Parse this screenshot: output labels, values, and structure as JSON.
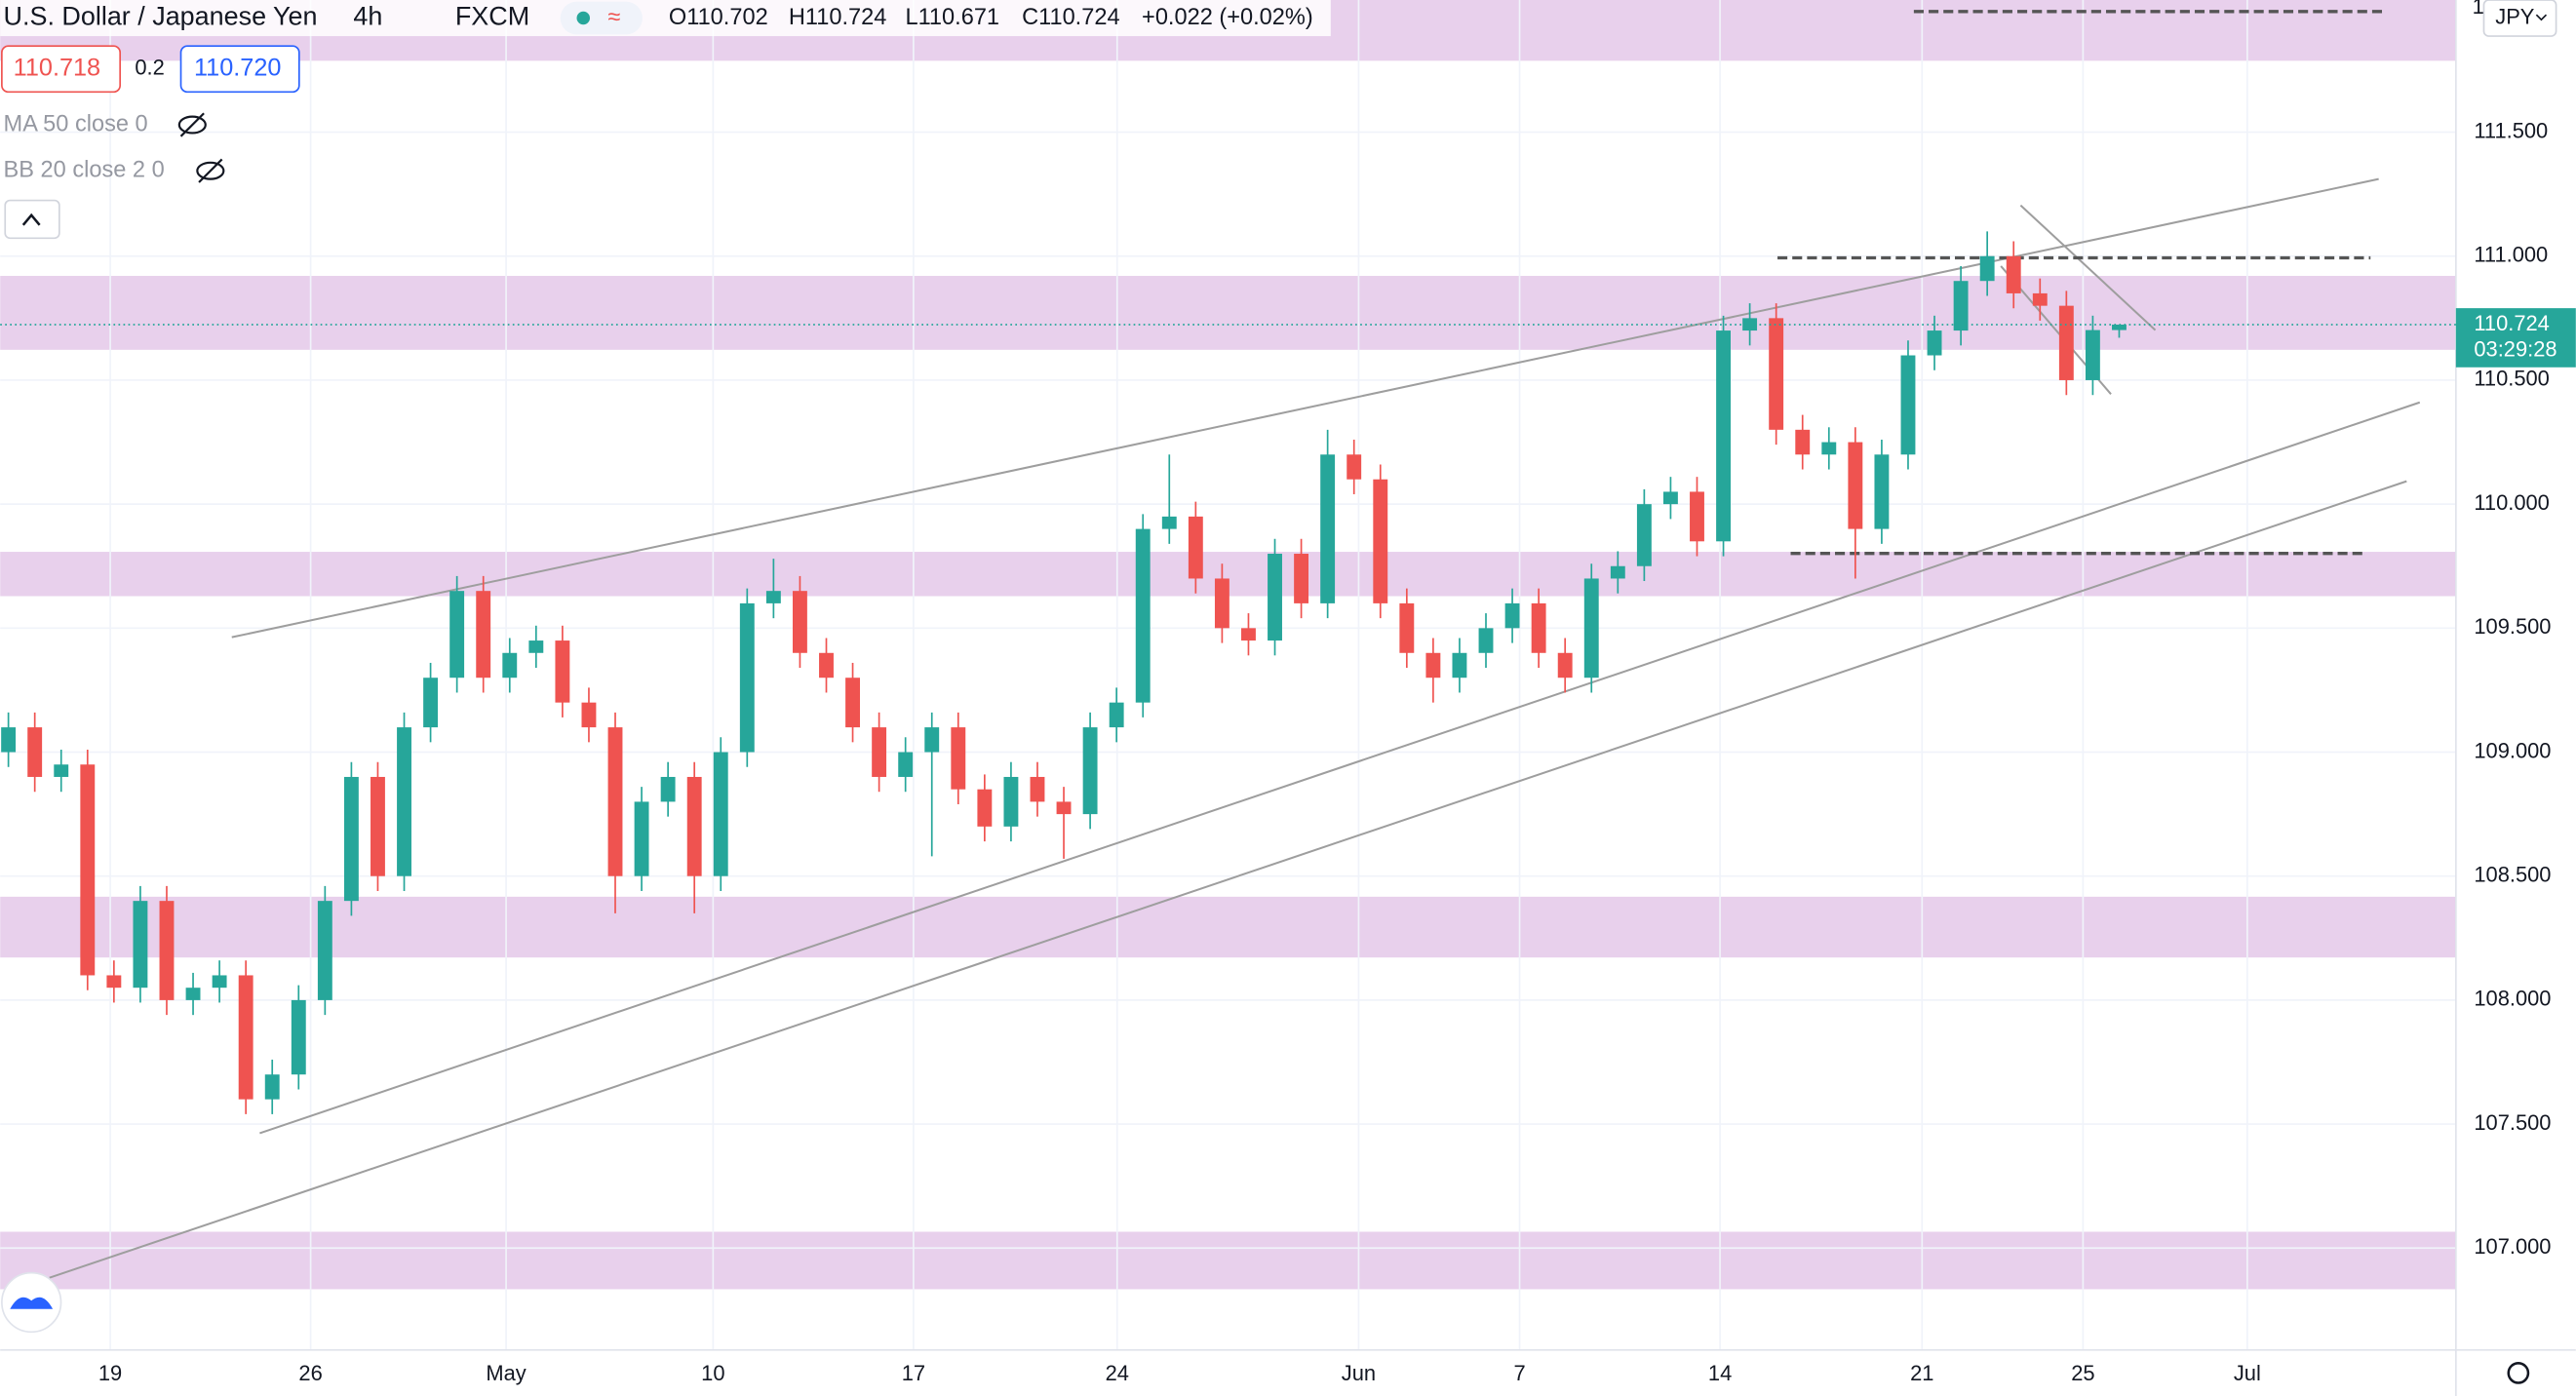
{
  "header": {
    "symbol": "U.S. Dollar / Japanese Yen",
    "interval": "4h",
    "exchange": "FXCM",
    "ohlc": [
      "O110.702",
      "H110.724",
      "L110.671",
      "C110.724",
      "+0.022 (+0.02%)"
    ],
    "sell": "110.718",
    "spread": "0.2",
    "buy": "110.720",
    "indicators": [
      "MA 50 close 0",
      "BB 20 close 2 0"
    ],
    "currency": "JPY",
    "top_cut_label": "1"
  },
  "chart_data": {
    "type": "candlestick",
    "up_color": "#26a69a",
    "down_color": "#ef5350",
    "ylim": [
      106.589,
      112.033
    ],
    "yticks": [
      {
        "value": 107,
        "label": "107.000"
      },
      {
        "value": 107.5,
        "label": "107.500"
      },
      {
        "value": 108,
        "label": "108.000"
      },
      {
        "value": 108.5,
        "label": "108.500"
      },
      {
        "value": 109,
        "label": "109.000"
      },
      {
        "value": 109.5,
        "label": "109.500"
      },
      {
        "value": 110,
        "label": "110.000"
      },
      {
        "value": 110.5,
        "label": "110.500"
      },
      {
        "value": 111,
        "label": "111.000"
      },
      {
        "value": 111.5,
        "label": "111.500"
      }
    ],
    "categories": [
      "19",
      "26",
      "May",
      "10",
      "17",
      "24",
      "Jun",
      "7",
      "14",
      "21",
      "25",
      "Jul"
    ],
    "last_price": 110.724,
    "countdown": "03:29:28",
    "candles": [
      [
        109.0,
        109.16,
        108.94,
        109.1
      ],
      [
        109.1,
        109.16,
        108.84,
        108.9
      ],
      [
        108.9,
        109.01,
        108.84,
        108.95
      ],
      [
        108.95,
        109.01,
        108.04,
        108.1
      ],
      [
        108.1,
        108.16,
        107.99,
        108.05
      ],
      [
        108.05,
        108.46,
        107.99,
        108.4
      ],
      [
        108.4,
        108.46,
        107.94,
        108.0
      ],
      [
        108.0,
        108.11,
        107.94,
        108.05
      ],
      [
        108.05,
        108.16,
        107.99,
        108.1
      ],
      [
        108.1,
        108.16,
        107.54,
        107.6
      ],
      [
        107.6,
        107.76,
        107.54,
        107.7
      ],
      [
        107.7,
        108.06,
        107.64,
        108.0
      ],
      [
        108.0,
        108.46,
        107.94,
        108.4
      ],
      [
        108.4,
        108.96,
        108.34,
        108.9
      ],
      [
        108.9,
        108.96,
        108.44,
        108.5
      ],
      [
        108.5,
        109.16,
        108.44,
        109.1
      ],
      [
        109.1,
        109.36,
        109.04,
        109.3
      ],
      [
        109.3,
        109.71,
        109.24,
        109.65
      ],
      [
        109.65,
        109.71,
        109.24,
        109.3
      ],
      [
        109.3,
        109.46,
        109.24,
        109.4
      ],
      [
        109.4,
        109.51,
        109.34,
        109.45
      ],
      [
        109.45,
        109.51,
        109.14,
        109.2
      ],
      [
        109.2,
        109.26,
        109.04,
        109.1
      ],
      [
        109.1,
        109.16,
        108.35,
        108.5
      ],
      [
        108.5,
        108.86,
        108.44,
        108.8
      ],
      [
        108.8,
        108.96,
        108.74,
        108.9
      ],
      [
        108.9,
        108.96,
        108.35,
        108.5
      ],
      [
        108.5,
        109.06,
        108.44,
        109.0
      ],
      [
        109.0,
        109.66,
        108.94,
        109.6
      ],
      [
        109.6,
        109.78,
        109.54,
        109.65
      ],
      [
        109.65,
        109.71,
        109.34,
        109.4
      ],
      [
        109.4,
        109.46,
        109.24,
        109.3
      ],
      [
        109.3,
        109.36,
        109.04,
        109.1
      ],
      [
        109.1,
        109.16,
        108.84,
        108.9
      ],
      [
        108.9,
        109.06,
        108.84,
        109.0
      ],
      [
        109.0,
        109.16,
        108.58,
        109.1
      ],
      [
        109.1,
        109.16,
        108.79,
        108.85
      ],
      [
        108.85,
        108.91,
        108.64,
        108.7
      ],
      [
        108.7,
        108.96,
        108.64,
        108.9
      ],
      [
        108.9,
        108.96,
        108.74,
        108.8
      ],
      [
        108.8,
        108.86,
        108.57,
        108.75
      ],
      [
        108.75,
        109.16,
        108.69,
        109.1
      ],
      [
        109.1,
        109.26,
        109.04,
        109.2
      ],
      [
        109.2,
        109.96,
        109.14,
        109.9
      ],
      [
        109.9,
        110.2,
        109.84,
        109.95
      ],
      [
        109.95,
        110.01,
        109.64,
        109.7
      ],
      [
        109.7,
        109.76,
        109.44,
        109.5
      ],
      [
        109.5,
        109.56,
        109.39,
        109.45
      ],
      [
        109.45,
        109.86,
        109.39,
        109.8
      ],
      [
        109.8,
        109.86,
        109.54,
        109.6
      ],
      [
        109.6,
        110.3,
        109.54,
        110.2
      ],
      [
        110.2,
        110.26,
        110.04,
        110.1
      ],
      [
        110.1,
        110.16,
        109.54,
        109.6
      ],
      [
        109.6,
        109.66,
        109.34,
        109.4
      ],
      [
        109.4,
        109.46,
        109.2,
        109.3
      ],
      [
        109.3,
        109.46,
        109.24,
        109.4
      ],
      [
        109.4,
        109.56,
        109.34,
        109.5
      ],
      [
        109.5,
        109.66,
        109.44,
        109.6
      ],
      [
        109.6,
        109.66,
        109.34,
        109.4
      ],
      [
        109.4,
        109.46,
        109.24,
        109.3
      ],
      [
        109.3,
        109.76,
        109.24,
        109.7
      ],
      [
        109.7,
        109.81,
        109.64,
        109.75
      ],
      [
        109.75,
        110.06,
        109.69,
        110.0
      ],
      [
        110.0,
        110.11,
        109.94,
        110.05
      ],
      [
        110.05,
        110.11,
        109.79,
        109.85
      ],
      [
        109.85,
        110.76,
        109.79,
        110.7
      ],
      [
        110.7,
        110.81,
        110.64,
        110.75
      ],
      [
        110.75,
        110.81,
        110.24,
        110.3
      ],
      [
        110.3,
        110.36,
        110.14,
        110.2
      ],
      [
        110.2,
        110.31,
        110.14,
        110.25
      ],
      [
        110.25,
        110.31,
        109.7,
        109.9
      ],
      [
        109.9,
        110.26,
        109.84,
        110.2
      ],
      [
        110.2,
        110.66,
        110.14,
        110.6
      ],
      [
        110.6,
        110.76,
        110.54,
        110.7
      ],
      [
        110.7,
        110.96,
        110.64,
        110.9
      ],
      [
        110.9,
        111.1,
        110.84,
        111.0
      ],
      [
        111.0,
        111.06,
        110.79,
        110.85
      ],
      [
        110.85,
        110.91,
        110.74,
        110.8
      ],
      [
        110.8,
        110.86,
        110.44,
        110.5
      ],
      [
        110.5,
        110.76,
        110.44,
        110.702
      ],
      [
        110.702,
        110.724,
        110.671,
        110.724
      ]
    ]
  }
}
